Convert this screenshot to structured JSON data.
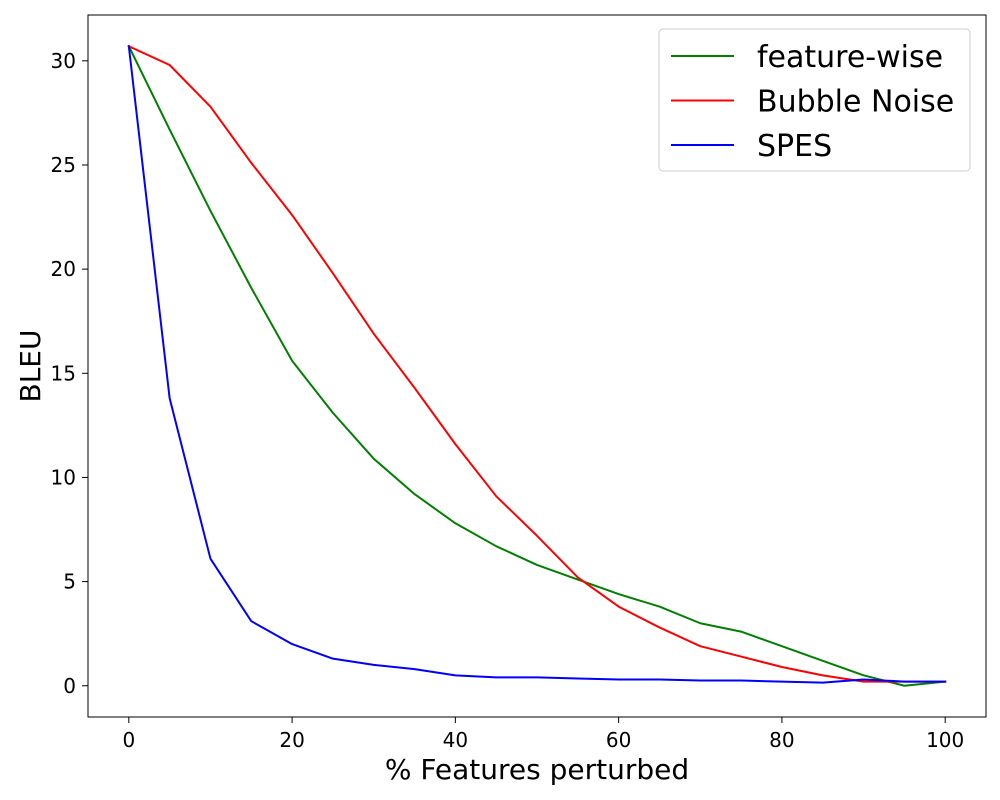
{
  "chart_data": {
    "type": "line",
    "xlabel": "% Features perturbed",
    "ylabel": "BLEU",
    "xlim": [
      -5,
      105
    ],
    "ylim": [
      -1.5,
      32.2
    ],
    "xticks": [
      0,
      20,
      40,
      60,
      80,
      100
    ],
    "yticks": [
      0,
      5,
      10,
      15,
      20,
      25,
      30
    ],
    "grid": false,
    "legend_position": "top-right",
    "x": [
      0,
      5,
      10,
      15,
      20,
      25,
      30,
      35,
      40,
      45,
      50,
      55,
      60,
      65,
      70,
      75,
      80,
      85,
      90,
      95,
      100
    ],
    "series": [
      {
        "name": "feature-wise",
        "color": "#008000",
        "values": [
          30.7,
          26.7,
          22.8,
          19.1,
          15.6,
          13.1,
          10.9,
          9.2,
          7.8,
          6.7,
          5.8,
          5.1,
          4.4,
          3.8,
          3.0,
          2.6,
          1.9,
          1.2,
          0.5,
          0.0,
          0.2
        ]
      },
      {
        "name": "Bubble Noise",
        "color": "#ff0000",
        "values": [
          30.7,
          29.8,
          27.8,
          25.1,
          22.6,
          19.8,
          16.9,
          14.3,
          11.6,
          9.1,
          7.2,
          5.2,
          3.8,
          2.8,
          1.9,
          1.4,
          0.9,
          0.5,
          0.2,
          0.2,
          0.2
        ]
      },
      {
        "name": "SPES",
        "color": "#0000ff",
        "values": [
          30.7,
          13.8,
          6.1,
          3.1,
          2.0,
          1.3,
          1.0,
          0.8,
          0.5,
          0.4,
          0.4,
          0.35,
          0.3,
          0.3,
          0.25,
          0.25,
          0.2,
          0.15,
          0.3,
          0.2,
          0.2
        ]
      }
    ]
  }
}
